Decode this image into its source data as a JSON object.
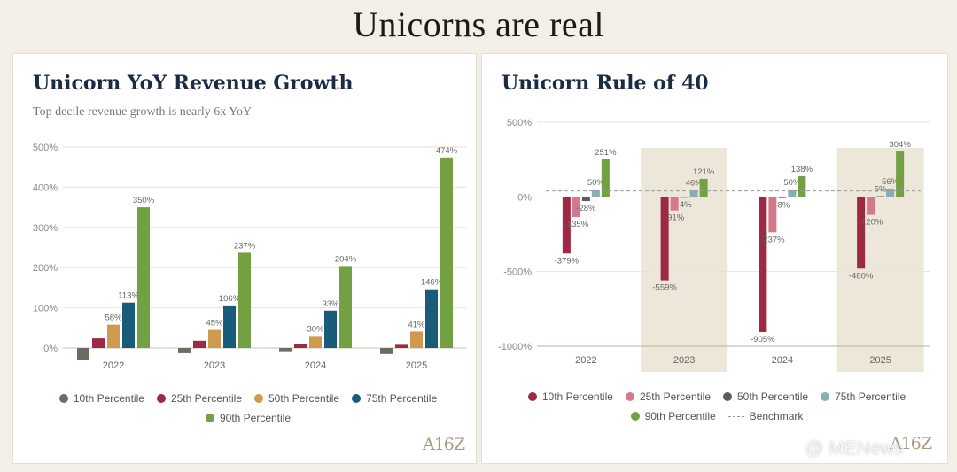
{
  "page": {
    "title": "Unicorns are real"
  },
  "colors": {
    "p10": "#6e6b64",
    "p25": "#9d2944",
    "p50": "#cf9a4e",
    "p75": "#195b78",
    "p90": "#72a043",
    "r10": "#9d2944",
    "r25": "#d27a8c",
    "r50": "#5c5c5c",
    "r75": "#87aeb1",
    "r90": "#72a043",
    "shade": "#ede7d9",
    "benchmark": "#999999"
  },
  "left_card": {
    "title": "Unicorn YoY Revenue Growth",
    "subtitle": "Top decile revenue growth is nearly 6x YoY",
    "logo": "A16Z"
  },
  "right_card": {
    "title": "Unicorn Rule of 40",
    "logo": "A16Z"
  },
  "watermark": "@ MENews",
  "chart_data": [
    {
      "type": "bar",
      "title": "Unicorn YoY Revenue Growth",
      "subtitle": "Top decile revenue growth is nearly 6x YoY",
      "categories": [
        "2022",
        "2023",
        "2024",
        "2025"
      ],
      "ylim": [
        0,
        500
      ],
      "yticks": [
        "0%",
        "100%",
        "200%",
        "300%",
        "400%",
        "500%"
      ],
      "grid": true,
      "legend": "bottom",
      "series": [
        {
          "name": "10th Percentile",
          "color_key": "p10",
          "values": [
            -30,
            -13,
            -8,
            -15
          ],
          "labels": [
            "",
            "",
            "",
            ""
          ]
        },
        {
          "name": "25th Percentile",
          "color_key": "p25",
          "values": [
            24,
            18,
            9,
            8
          ],
          "labels": [
            "",
            "",
            "",
            ""
          ]
        },
        {
          "name": "50th Percentile",
          "color_key": "p50",
          "values": [
            58,
            45,
            30,
            41
          ],
          "labels": [
            "58%",
            "45%",
            "30%",
            "41%"
          ]
        },
        {
          "name": "75th Percentile",
          "color_key": "p75",
          "values": [
            113,
            106,
            93,
            146
          ],
          "labels": [
            "113%",
            "106%",
            "93%",
            "146%"
          ]
        },
        {
          "name": "90th Percentile",
          "color_key": "p90",
          "values": [
            350,
            237,
            204,
            474
          ],
          "labels": [
            "350%",
            "237%",
            "204%",
            "474%"
          ]
        }
      ]
    },
    {
      "type": "bar",
      "title": "Unicorn Rule of 40",
      "categories": [
        "2022",
        "2023",
        "2024",
        "2025"
      ],
      "ylim": [
        -1000,
        500
      ],
      "yticks": [
        "500%",
        "0%",
        "-500%",
        "-1000%"
      ],
      "grid": true,
      "legend": "bottom",
      "shaded_categories": [
        "2023",
        "2025"
      ],
      "benchmark": {
        "name": "Benchmark",
        "value": 40
      },
      "series": [
        {
          "name": "10th Percentile",
          "color_key": "r10",
          "values": [
            -379,
            -559,
            -905,
            -480
          ],
          "labels": [
            "-379%",
            "-559%",
            "-905%",
            "-480%"
          ]
        },
        {
          "name": "25th Percentile",
          "color_key": "r25",
          "values": [
            -135,
            -91,
            -237,
            -120
          ],
          "labels": [
            "-135%",
            "-91%",
            "-237%",
            "-120%"
          ]
        },
        {
          "name": "50th Percentile",
          "color_key": "r50",
          "values": [
            -28,
            -4,
            -8,
            5
          ],
          "labels": [
            "-28%",
            "-4%",
            "-8%",
            "5%"
          ]
        },
        {
          "name": "75th Percentile",
          "color_key": "r75",
          "values": [
            50,
            46,
            50,
            56
          ],
          "labels": [
            "50%",
            "46%",
            "50%",
            "56%"
          ]
        },
        {
          "name": "90th Percentile",
          "color_key": "r90",
          "values": [
            251,
            121,
            138,
            304
          ],
          "labels": [
            "251%",
            "121%",
            "138%",
            "304%"
          ]
        }
      ]
    }
  ]
}
